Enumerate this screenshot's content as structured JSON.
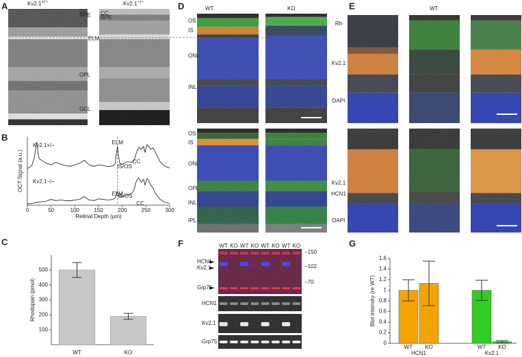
{
  "panel_labels": [
    "A",
    "B",
    "C",
    "D",
    "E",
    "F",
    "G"
  ],
  "panel_a": {
    "images": [
      {
        "gene": "Kv2.1",
        "genotype": "+/−",
        "layers": [
          "CC",
          "RPE",
          "ELM",
          "OPL",
          "GCL"
        ]
      },
      {
        "gene": "Kv2.1",
        "genotype": "−/−",
        "layers": [
          "CC",
          "RPE"
        ]
      }
    ]
  },
  "panel_d": {
    "columns": [
      "WT",
      "KO"
    ],
    "top": {
      "layers": [
        "OS",
        "IS",
        "ONL",
        "INL"
      ],
      "channels": [
        "Rh",
        "Kv2.1",
        "DAPI"
      ]
    },
    "bottom": {
      "layers": [
        "OS",
        "IS",
        "ONL",
        "OPL",
        "INL",
        "IPL"
      ],
      "channels": [
        "Kv2.1",
        "HCN1",
        "DAPI"
      ]
    }
  },
  "panel_e": {
    "title": "WT"
  },
  "panel_f": {
    "lanes": [
      "WT",
      "KO",
      "WT",
      "KO",
      "WT",
      "KO",
      "WT",
      "KO"
    ],
    "bands": [
      "HCN1",
      "Kv2.1",
      "Grp75"
    ],
    "markers": [
      "−150",
      "−102",
      "−70"
    ],
    "blots": [
      "HCN1",
      "Kv2.1",
      "Grp75"
    ]
  },
  "chart_data": [
    {
      "type": "line",
      "x_label": "Retinal Depth (μm)",
      "y_label": "OCT Signal (a.u.)",
      "xlim": [
        0,
        300
      ],
      "xticks": [
        0,
        50,
        100,
        150,
        200,
        250,
        300
      ],
      "ylim": [
        0,
        100
      ],
      "x": [
        0,
        5,
        10,
        15,
        18,
        20,
        22,
        25,
        30,
        40,
        50,
        60,
        70,
        80,
        90,
        100,
        110,
        120,
        130,
        140,
        150,
        160,
        170,
        180,
        185,
        188,
        190,
        192,
        195,
        200,
        210,
        220,
        225,
        230,
        235,
        240,
        245,
        248,
        252,
        255,
        260,
        265,
        270,
        280,
        290,
        300
      ],
      "series": [
        {
          "name": "Kv2.1+/−",
          "color": "#111111",
          "annotations": [
            "ELM",
            "IS/OS",
            "CC"
          ],
          "values": [
            8,
            12,
            20,
            45,
            80,
            95,
            60,
            40,
            35,
            25,
            20,
            28,
            22,
            18,
            15,
            20,
            25,
            35,
            20,
            15,
            20,
            18,
            14,
            16,
            25,
            60,
            80,
            50,
            25,
            22,
            30,
            28,
            35,
            60,
            78,
            70,
            80,
            60,
            85,
            82,
            70,
            75,
            60,
            30,
            15,
            10
          ]
        },
        {
          "name": "Kv2.1−/−",
          "color": "#111111",
          "annotations": [
            "ELM",
            "IS/OS",
            "CC"
          ],
          "values": [
            4,
            5,
            6,
            8,
            9,
            10,
            10,
            11,
            12,
            14,
            20,
            16,
            18,
            16,
            15,
            18,
            20,
            30,
            18,
            16,
            22,
            20,
            18,
            20,
            25,
            38,
            48,
            35,
            28,
            30,
            35,
            40,
            55,
            85,
            95,
            80,
            90,
            70,
            92,
            88,
            70,
            60,
            40,
            20,
            10,
            6
          ]
        }
      ]
    },
    {
      "type": "bar",
      "y_label": "Rhodopsin (pmol)",
      "categories": [
        "WT",
        "KO"
      ],
      "values": [
        500,
        190
      ],
      "errors": [
        50,
        20
      ],
      "color": "#c8c8c8",
      "ylim": [
        0,
        600
      ],
      "yticks": [
        100,
        200,
        300,
        400,
        500
      ]
    },
    {
      "type": "grouped_bar",
      "y_label": "Blot intensity (re WT)",
      "ylim": [
        0,
        1.6
      ],
      "yticks": [
        0,
        0.2,
        0.4,
        0.6,
        0.8,
        1,
        1.2,
        1.4,
        1.6
      ],
      "groups": [
        {
          "name": "HCN1",
          "color": "#f5a300",
          "labels": [
            "WT",
            "KO"
          ],
          "values": [
            1,
            1.13
          ],
          "errors": [
            0.2,
            0.42
          ]
        },
        {
          "name": "Kv2.1",
          "color": "#33cc22",
          "labels": [
            "WT",
            "KO"
          ],
          "values": [
            1,
            0.03
          ],
          "errors": [
            0.19,
            0.02
          ]
        }
      ]
    }
  ]
}
